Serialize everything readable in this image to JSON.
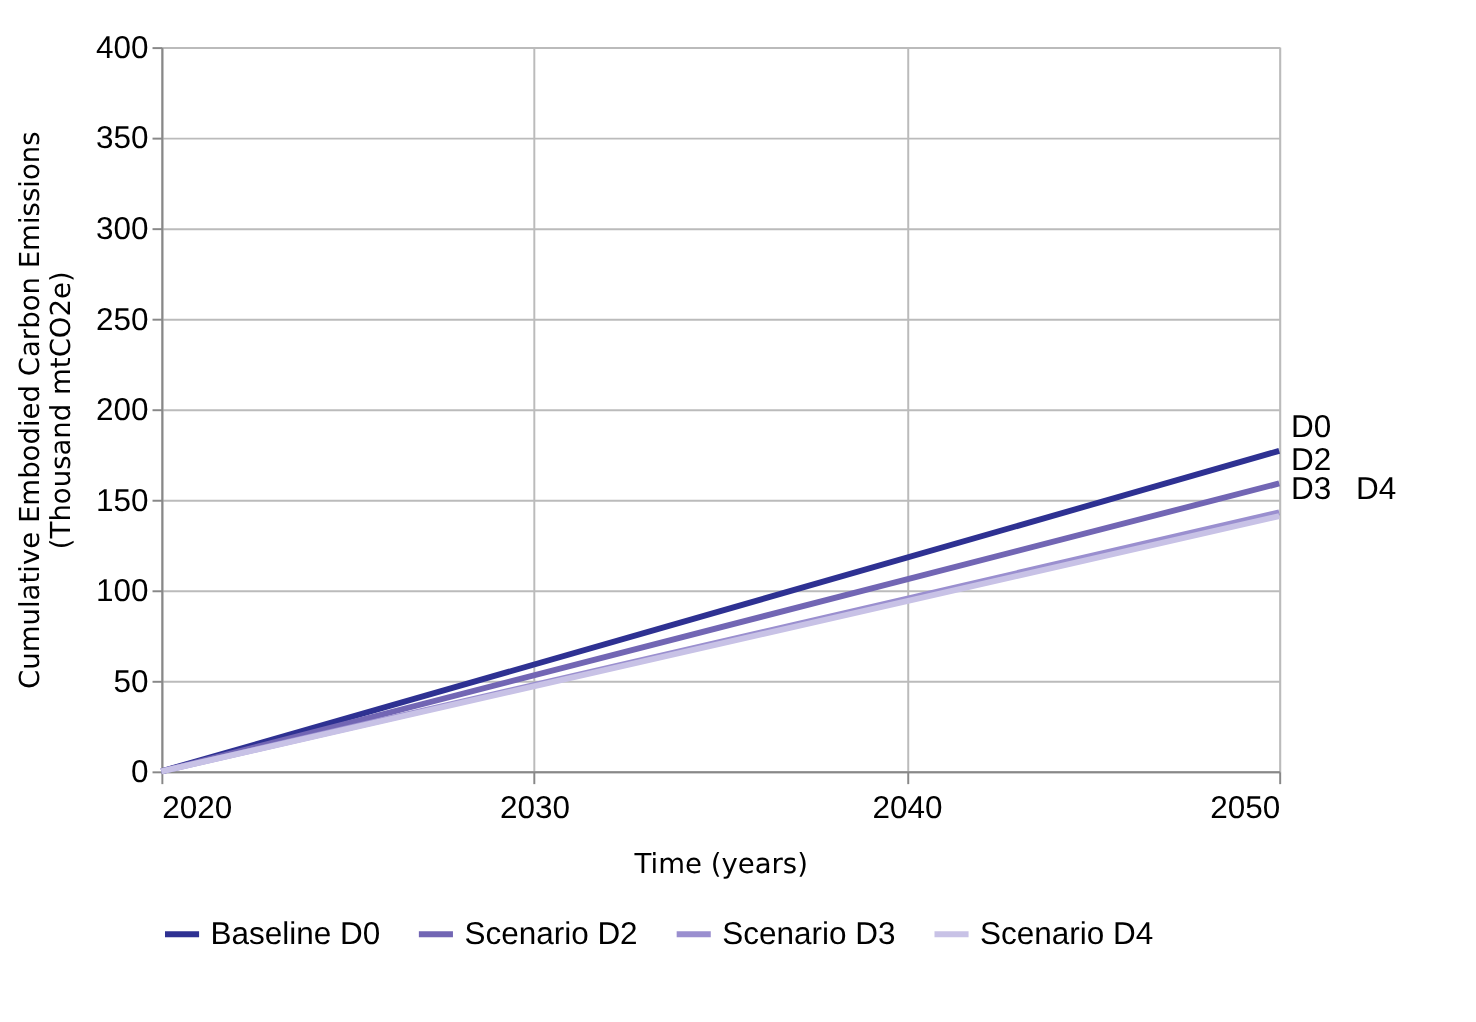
{
  "chart_data": {
    "type": "line",
    "xlabel": "Time (years)",
    "ylabel": "Cumulative Embodied Carbon Emissions (Thousand mtCO2e)",
    "x": [
      2020,
      2050
    ],
    "series": [
      {
        "name": "Baseline D0",
        "color": "#2e3192",
        "values": [
          0,
          177
        ]
      },
      {
        "name": "Scenario D2",
        "color": "#7266b4",
        "values": [
          0,
          159
        ]
      },
      {
        "name": "Scenario D3",
        "color": "#9a8fcf",
        "values": [
          0,
          143
        ]
      },
      {
        "name": "Scenario D4",
        "color": "#c8c2e6",
        "values": [
          0,
          141
        ]
      }
    ],
    "annotations": [
      "D0",
      "D2",
      "D3",
      "D4"
    ],
    "xlim": [
      2020,
      2050
    ],
    "xticks": [
      2020,
      2030,
      2040,
      2050
    ],
    "ylim": [
      0,
      400
    ],
    "yticks": [
      0,
      50,
      100,
      150,
      200,
      250,
      300,
      350,
      400
    ],
    "grid": true,
    "legend": "bottom",
    "marker": "none",
    "line_style": "solid"
  }
}
